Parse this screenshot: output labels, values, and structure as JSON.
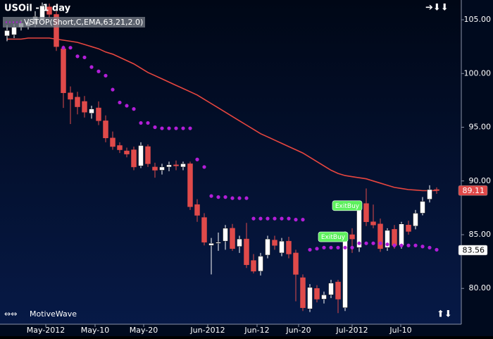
{
  "chart_data": {
    "type": "candlestick",
    "title": "USOil - 1 day",
    "legend": "VSTOP(Short,C,EMA,63,21,2.0)",
    "footer": "MotiveWave",
    "ylim": [
      76.67,
      106.84
    ],
    "yticks": [
      {
        "value": 80,
        "label": "80.00"
      },
      {
        "value": 85,
        "label": "85.00"
      },
      {
        "value": 90,
        "label": "90.00"
      },
      {
        "value": 95,
        "label": "95.00"
      },
      {
        "value": 100,
        "label": "100.00"
      },
      {
        "value": 105,
        "label": "105.00"
      }
    ],
    "xlim": [
      -1,
      64.5
    ],
    "xticks": [
      {
        "value": 5.5,
        "label": "May-2012"
      },
      {
        "value": 12.5,
        "label": "May-10"
      },
      {
        "value": 19.4,
        "label": "May-20"
      },
      {
        "value": 28.5,
        "label": "Jun-2012"
      },
      {
        "value": 35.5,
        "label": "Jun-12"
      },
      {
        "value": 41.4,
        "label": "Jun-20"
      },
      {
        "value": 49,
        "label": "Jul-2012"
      },
      {
        "value": 55.9,
        "label": "Jul-10"
      }
    ],
    "up_color": "#ffffff",
    "down_color": "#e04a4a",
    "open": [
      103.5,
      103.6,
      104.3,
      104.4,
      104.6,
      105.0,
      106.2,
      105.5,
      102.3,
      98.2,
      97.8,
      97.4,
      96.3,
      96.8,
      95.6,
      94.0,
      93.3,
      92.8,
      92.9,
      91.4,
      93.2,
      91.3,
      91.0,
      91.3,
      91.5,
      91.3,
      91.6,
      87.8,
      86.6,
      84.0,
      84.2,
      84.4,
      85.6,
      83.9,
      84.6,
      82.6,
      81.6,
      83.1,
      84.5,
      83.3,
      84.4,
      83.3,
      81.0,
      78.1,
      80.0,
      79.0,
      79.4,
      80.6,
      78.2,
      85.0,
      83.8,
      87.9,
      86.2,
      86.0,
      83.8,
      85.5,
      84.0,
      85.9,
      85.8,
      87.0,
      88.3,
      89.2
    ],
    "high": [
      104.5,
      104.6,
      105.0,
      105.1,
      105.8,
      106.6,
      106.5,
      105.8,
      102.6,
      98.8,
      98.3,
      97.9,
      97.0,
      97.4,
      96.1,
      94.6,
      93.6,
      93.1,
      93.2,
      93.6,
      93.4,
      91.7,
      91.6,
      91.8,
      91.9,
      91.8,
      91.8,
      88.3,
      87.0,
      84.7,
      85.2,
      85.9,
      86.0,
      84.9,
      86.1,
      83.2,
      83.3,
      84.9,
      84.9,
      84.7,
      84.8,
      83.6,
      81.3,
      80.4,
      80.3,
      79.7,
      80.8,
      80.8,
      85.3,
      85.6,
      88.0,
      89.3,
      87.8,
      86.5,
      85.6,
      85.9,
      86.2,
      86.3,
      87.3,
      88.5,
      89.6,
      89.4
    ],
    "low": [
      103.0,
      103.3,
      104.0,
      104.1,
      104.3,
      104.8,
      105.2,
      102.1,
      96.8,
      95.3,
      96.2,
      95.9,
      95.8,
      95.2,
      93.6,
      92.9,
      92.6,
      92.2,
      91.0,
      91.2,
      91.3,
      90.3,
      90.6,
      90.9,
      91.0,
      91.0,
      87.3,
      86.2,
      84.0,
      81.3,
      83.5,
      83.6,
      83.5,
      83.3,
      81.9,
      81.4,
      81.2,
      82.8,
      83.6,
      83.0,
      82.8,
      78.8,
      77.9,
      77.8,
      78.7,
      78.6,
      79.1,
      77.7,
      77.9,
      83.3,
      83.4,
      85.8,
      85.6,
      83.4,
      83.5,
      83.7,
      83.7,
      85.0,
      85.5,
      86.8,
      88.0,
      88.8
    ],
    "close": [
      104.0,
      104.3,
      104.7,
      104.8,
      105.3,
      106.3,
      105.5,
      102.5,
      98.2,
      97.6,
      96.9,
      96.4,
      96.7,
      95.6,
      94.0,
      93.2,
      92.9,
      92.5,
      91.3,
      93.3,
      91.6,
      91.0,
      91.3,
      91.5,
      91.4,
      91.6,
      87.6,
      86.8,
      84.3,
      84.2,
      84.3,
      85.6,
      83.7,
      84.6,
      82.2,
      81.6,
      83.0,
      84.6,
      84.0,
      84.4,
      83.2,
      81.3,
      78.2,
      80.1,
      79.0,
      79.4,
      80.5,
      79.0,
      85.0,
      84.6,
      87.8,
      86.2,
      85.9,
      83.7,
      85.4,
      84.0,
      86.0,
      85.3,
      87.0,
      88.1,
      89.2,
      89.1
    ],
    "ema": {
      "color": "#e8463f",
      "values": [
        103.2,
        103.2,
        103.2,
        103.3,
        103.3,
        103.3,
        103.3,
        103.2,
        103.1,
        103.0,
        102.9,
        102.7,
        102.5,
        102.3,
        102.0,
        101.8,
        101.5,
        101.2,
        100.9,
        100.5,
        100.1,
        99.8,
        99.5,
        99.2,
        98.9,
        98.6,
        98.3,
        98.0,
        97.6,
        97.2,
        96.8,
        96.4,
        96.0,
        95.6,
        95.2,
        94.8,
        94.4,
        94.1,
        93.8,
        93.5,
        93.2,
        92.9,
        92.6,
        92.2,
        91.8,
        91.4,
        91.0,
        90.7,
        90.5,
        90.4,
        90.3,
        90.2,
        90.0,
        89.8,
        89.6,
        89.4,
        89.3,
        89.2,
        89.15,
        89.1,
        89.1,
        89.11
      ]
    },
    "stops": {
      "color": "#b21ed8",
      "values": [
        null,
        null,
        null,
        null,
        null,
        null,
        null,
        null,
        102.4,
        102.4,
        101.6,
        101.5,
        100.6,
        100.2,
        99.8,
        98.5,
        97.3,
        97.0,
        96.7,
        95.4,
        95.4,
        95.0,
        94.9,
        94.9,
        94.9,
        94.9,
        94.9,
        92.0,
        91.3,
        88.6,
        88.5,
        88.5,
        88.4,
        88.4,
        88.4,
        86.5,
        86.5,
        86.5,
        86.5,
        86.5,
        86.5,
        86.4,
        86.4,
        83.6,
        83.7,
        83.8,
        83.8,
        83.8,
        83.8,
        83.8,
        84.2,
        84.2,
        84.2,
        84.2,
        84.1,
        84.0,
        84.0,
        84.0,
        84.0,
        83.9,
        83.8,
        83.6
      ]
    },
    "annotations": [
      {
        "text": "ExitBuy",
        "x": 48.3,
        "y": 87.7
      },
      {
        "text": "ExitBuy",
        "x": 46.3,
        "y": 84.8
      }
    ],
    "price_markers": [
      {
        "value": 89.11,
        "color": "#e04a4a",
        "text_color": "#ffffff"
      },
      {
        "value": 83.56,
        "color": "#ffffff",
        "text_color": "#000000"
      }
    ]
  }
}
